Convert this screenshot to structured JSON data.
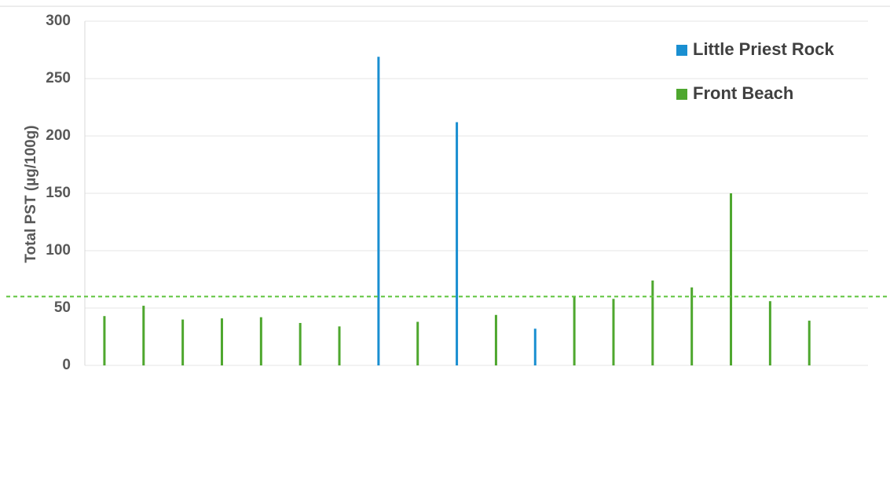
{
  "chart_data": {
    "type": "bar",
    "y_label": "Total PST (µg/100g)",
    "categories": [
      null,
      null,
      null,
      null,
      null,
      null,
      null,
      null,
      null,
      null,
      null,
      null,
      null,
      null,
      null,
      null,
      null,
      null,
      null,
      null
    ],
    "series": [
      {
        "name": "Little Priest Rock",
        "color": "#1a8fd1",
        "values": [
          null,
          null,
          null,
          null,
          null,
          null,
          null,
          269,
          null,
          212,
          null,
          32,
          null,
          null,
          null,
          null,
          null,
          null,
          null,
          null
        ]
      },
      {
        "name": "Front Beach",
        "color": "#4ea72e",
        "values": [
          43,
          52,
          40,
          41,
          42,
          37,
          34,
          null,
          38,
          null,
          44,
          null,
          60,
          58,
          74,
          68,
          150,
          56,
          39,
          null
        ]
      }
    ],
    "reference_line": {
      "value": 60,
      "color": "#5ec43c"
    },
    "ylim": [
      0,
      300
    ],
    "yticks": [
      0,
      50,
      100,
      150,
      200,
      250,
      300
    ],
    "grid": true
  }
}
